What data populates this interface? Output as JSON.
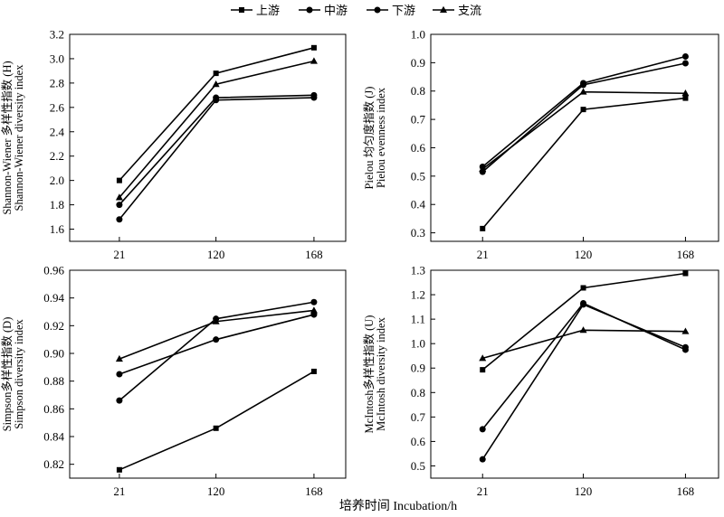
{
  "legend": [
    "上游",
    "中游",
    "下游",
    "支流"
  ],
  "x_axis_title": "培养时间 Incubation/h",
  "chart_data": [
    {
      "type": "line",
      "categories": [
        "21",
        "120",
        "168"
      ],
      "ylabel_lines": [
        "Shannon-Wiener 多样性指数 (H)",
        "Shannon-Wiener diversity index"
      ],
      "ylim": [
        1.5,
        3.2
      ],
      "yticks": [
        1.6,
        1.8,
        2.0,
        2.2,
        2.4,
        2.6,
        2.8,
        3.0,
        3.2
      ],
      "ytick_labels": [
        "1.6",
        "1.8",
        "2.0",
        "2.2",
        "2.4",
        "2.6",
        "2.8",
        "3.0",
        "3.2"
      ],
      "series": [
        {
          "name": "上游",
          "marker": "square",
          "values": [
            2.0,
            2.88,
            3.09
          ]
        },
        {
          "name": "中游",
          "marker": "circle",
          "values": [
            1.68,
            2.66,
            2.68
          ]
        },
        {
          "name": "下游",
          "marker": "circle",
          "values": [
            1.8,
            2.68,
            2.7
          ]
        },
        {
          "name": "支流",
          "marker": "triangle",
          "values": [
            1.86,
            2.79,
            2.98
          ]
        }
      ]
    },
    {
      "type": "line",
      "categories": [
        "21",
        "120",
        "168"
      ],
      "ylabel_lines": [
        "Pielou 均匀度指数 (J)",
        "Pielou evenness index"
      ],
      "ylim": [
        0.27,
        1.0
      ],
      "yticks": [
        0.3,
        0.4,
        0.5,
        0.6,
        0.7,
        0.8,
        0.9,
        1.0
      ],
      "ytick_labels": [
        "0.3",
        "0.4",
        "0.5",
        "0.6",
        "0.7",
        "0.8",
        "0.9",
        "1.0"
      ],
      "series": [
        {
          "name": "上游",
          "marker": "square",
          "values": [
            0.315,
            0.735,
            0.775
          ]
        },
        {
          "name": "中游",
          "marker": "circle",
          "values": [
            0.533,
            0.828,
            0.922
          ]
        },
        {
          "name": "下游",
          "marker": "circle",
          "values": [
            0.515,
            0.822,
            0.898
          ]
        },
        {
          "name": "支流",
          "marker": "triangle",
          "values": [
            0.525,
            0.797,
            0.792
          ]
        }
      ]
    },
    {
      "type": "line",
      "categories": [
        "21",
        "120",
        "168"
      ],
      "ylabel_lines": [
        "Simpson多样性指数 (D)",
        "Simpson diversity index"
      ],
      "ylim": [
        0.81,
        0.96
      ],
      "yticks": [
        0.82,
        0.84,
        0.86,
        0.88,
        0.9,
        0.92,
        0.94,
        0.96
      ],
      "ytick_labels": [
        "0.82",
        "0.84",
        "0.86",
        "0.88",
        "0.90",
        "0.92",
        "0.94",
        "0.96"
      ],
      "series": [
        {
          "name": "上游",
          "marker": "square",
          "values": [
            0.816,
            0.846,
            0.887
          ]
        },
        {
          "name": "中游",
          "marker": "circle",
          "values": [
            0.866,
            0.925,
            0.937
          ]
        },
        {
          "name": "下游",
          "marker": "circle",
          "values": [
            0.885,
            0.91,
            0.928
          ]
        },
        {
          "name": "支流",
          "marker": "triangle",
          "values": [
            0.896,
            0.923,
            0.931
          ]
        }
      ]
    },
    {
      "type": "line",
      "categories": [
        "21",
        "120",
        "168"
      ],
      "ylabel_lines": [
        "McIntosh多样性指数 (U)",
        "McIntosh diversity index"
      ],
      "ylim": [
        0.45,
        1.3
      ],
      "yticks": [
        0.5,
        0.6,
        0.7,
        0.8,
        0.9,
        1.0,
        1.1,
        1.2,
        1.3
      ],
      "ytick_labels": [
        "0.5",
        "0.6",
        "0.7",
        "0.8",
        "0.9",
        "1.0",
        "1.1",
        "1.2",
        "1.3"
      ],
      "series": [
        {
          "name": "上游",
          "marker": "square",
          "values": [
            0.893,
            1.228,
            1.287
          ]
        },
        {
          "name": "中游",
          "marker": "circle",
          "values": [
            0.65,
            1.165,
            0.975
          ]
        },
        {
          "name": "下游",
          "marker": "circle",
          "values": [
            0.527,
            1.16,
            0.985
          ]
        },
        {
          "name": "支流",
          "marker": "triangle",
          "values": [
            0.94,
            1.055,
            1.05
          ]
        }
      ]
    }
  ]
}
